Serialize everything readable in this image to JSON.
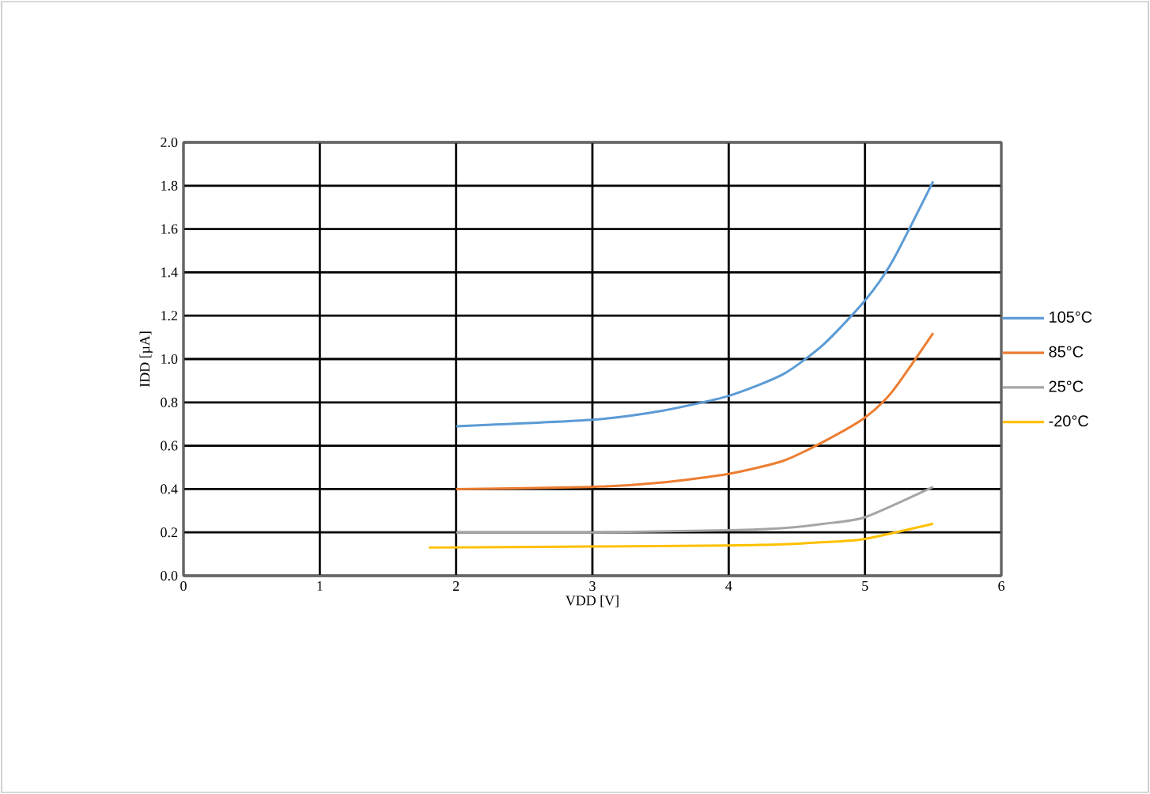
{
  "chart_data": {
    "type": "line",
    "xlabel": "VDD [V]",
    "ylabel": "IDD [µA]",
    "xlim": [
      0,
      6
    ],
    "xticks": [
      0,
      1,
      2,
      3,
      4,
      5,
      6
    ],
    "ylim": [
      0,
      2.0
    ],
    "yticks": [
      {
        "value": 0,
        "label": "0.0"
      },
      {
        "value": 0.2,
        "label": "0.2"
      },
      {
        "value": 0.4,
        "label": "0.4"
      },
      {
        "value": 0.6,
        "label": "0.6"
      },
      {
        "value": 0.8,
        "label": "0.8"
      },
      {
        "value": 1.0,
        "label": "1.0"
      },
      {
        "value": 1.2,
        "label": "1.2"
      },
      {
        "value": 1.4,
        "label": "1.4"
      },
      {
        "value": 1.6,
        "label": "1.6"
      },
      {
        "value": 1.8,
        "label": "1.8"
      },
      {
        "value": 2.0,
        "label": "2.0"
      }
    ],
    "grid": true,
    "legend": "right",
    "marker": "none",
    "line_style": "solid",
    "series": [
      {
        "name": "105°C",
        "color": "#5b9bd5",
        "x": [
          2,
          3,
          3.5,
          4,
          4.4,
          4.7,
          5,
          5.2,
          5.5
        ],
        "values": [
          0.69,
          0.72,
          0.76,
          0.83,
          0.93,
          1.07,
          1.27,
          1.45,
          1.82
        ]
      },
      {
        "name": "85°C",
        "color": "#ed7d31",
        "x": [
          2,
          3,
          3.5,
          4,
          4.4,
          4.7,
          5,
          5.2,
          5.5
        ],
        "values": [
          0.4,
          0.41,
          0.43,
          0.47,
          0.53,
          0.62,
          0.73,
          0.85,
          1.12
        ]
      },
      {
        "name": "25°C",
        "color": "#a5a5a5",
        "x": [
          2,
          3,
          4,
          4.4,
          4.7,
          5,
          5.5
        ],
        "values": [
          0.2,
          0.2,
          0.21,
          0.22,
          0.24,
          0.27,
          0.41
        ]
      },
      {
        "name": "-20°C",
        "color": "#ffc000",
        "x": [
          1.8,
          3,
          4,
          4.4,
          4.7,
          5,
          5.5
        ],
        "values": [
          0.13,
          0.135,
          0.14,
          0.145,
          0.155,
          0.17,
          0.24
        ]
      }
    ]
  }
}
